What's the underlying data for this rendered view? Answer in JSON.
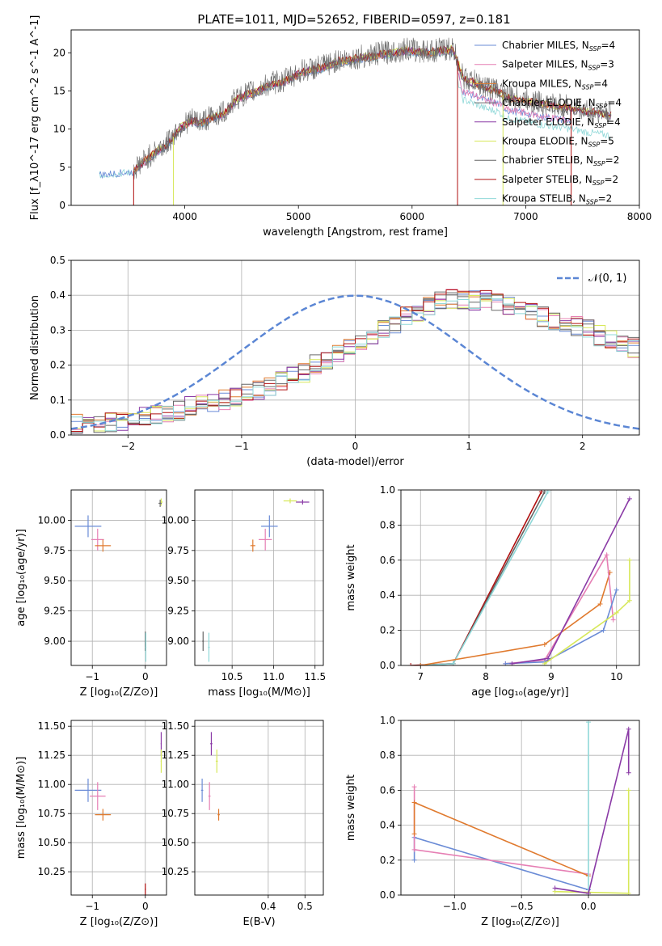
{
  "title": "PLATE=1011, MJD=52652, FIBERID=0597, z=0.181",
  "colors": {
    "chabrier_miles": "#6a8bd6",
    "salpeter_miles": "#e67fb4",
    "kroupa_miles": "#e07a2e",
    "chabrier_elodie": "#6b6b6b",
    "salpeter_elodie": "#8a3aa6",
    "kroupa_elodie": "#d7e85a",
    "chabrier_stelib": "#666666",
    "salpeter_stelib": "#b01010",
    "kroupa_stelib": "#8fd8d8",
    "gauss": "#5b86d4",
    "spectrum": "#808080"
  },
  "chart_data": [
    {
      "type": "line",
      "id": "spectrum",
      "xlabel": "wavelength [Angstrom, rest frame]",
      "ylabel": "Flux [f_λ10^-17 erg cm^-2 s^-1 A^-1]",
      "xlim": [
        3000,
        8000
      ],
      "ylim": [
        0,
        23
      ],
      "xticks": [
        "4000",
        "5000",
        "6000",
        "7000",
        "8000"
      ],
      "yticks": [
        "0",
        "5",
        "10",
        "15",
        "20"
      ],
      "grid": false,
      "legend_position": "top-right",
      "legend": [
        {
          "label": "Chabrier MILES, N",
          "sub": "SSP",
          "tail": "=4",
          "color": "chabrier_miles"
        },
        {
          "label": "Salpeter MILES, N",
          "sub": "SSP",
          "tail": "=3",
          "color": "salpeter_miles"
        },
        {
          "label": "Kroupa MILES, N",
          "sub": "SSP",
          "tail": "=4",
          "color": "kroupa_miles"
        },
        {
          "label": "Chabrier ELODIE, N",
          "sub": "SSP",
          "tail": "=4",
          "color": "chabrier_elodie"
        },
        {
          "label": "Salpeter ELODIE, N",
          "sub": "SSP",
          "tail": "=4",
          "color": "salpeter_elodie"
        },
        {
          "label": "Kroupa ELODIE, N",
          "sub": "SSP",
          "tail": "=5",
          "color": "kroupa_elodie"
        },
        {
          "label": "Chabrier STELIB, N",
          "sub": "SSP",
          "tail": "=2",
          "color": "chabrier_stelib"
        },
        {
          "label": "Salpeter STELIB, N",
          "sub": "SSP",
          "tail": "=2",
          "color": "salpeter_stelib"
        },
        {
          "label": "Kroupa STELIB, N",
          "sub": "SSP",
          "tail": "=2",
          "color": "kroupa_stelib"
        }
      ],
      "continuum": [
        [
          3250,
          4.1
        ],
        [
          3400,
          4.3
        ],
        [
          3550,
          4.5
        ],
        [
          3650,
          5.8
        ],
        [
          3750,
          7.0
        ],
        [
          3850,
          8.0
        ],
        [
          3950,
          10.0
        ],
        [
          4050,
          11.0
        ],
        [
          4150,
          10.8
        ],
        [
          4250,
          11.5
        ],
        [
          4350,
          12.0
        ],
        [
          4450,
          13.8
        ],
        [
          4550,
          14.5
        ],
        [
          4650,
          15.0
        ],
        [
          4750,
          15.8
        ],
        [
          4850,
          16.0
        ],
        [
          4950,
          16.8
        ],
        [
          5050,
          17.5
        ],
        [
          5150,
          17.8
        ],
        [
          5250,
          18.2
        ],
        [
          5350,
          18.8
        ],
        [
          5450,
          19.0
        ],
        [
          5550,
          19.3
        ],
        [
          5650,
          19.5
        ],
        [
          5750,
          19.8
        ],
        [
          5850,
          20.0
        ],
        [
          5950,
          20.3
        ],
        [
          6050,
          20.1
        ],
        [
          6150,
          20.0
        ],
        [
          6250,
          20.2
        ],
        [
          6350,
          20.4
        ],
        [
          6400,
          19.0
        ],
        [
          6450,
          16.5
        ],
        [
          6550,
          16.0
        ],
        [
          6650,
          15.3
        ],
        [
          6750,
          15.0
        ],
        [
          6850,
          14.0
        ],
        [
          6950,
          13.8
        ],
        [
          7050,
          13.5
        ],
        [
          7150,
          13.2
        ],
        [
          7250,
          13.0
        ],
        [
          7350,
          12.8
        ],
        [
          7450,
          12.5
        ],
        [
          7550,
          12.2
        ],
        [
          7650,
          12.0
        ],
        [
          7750,
          11.8
        ]
      ],
      "series_note_cut": [
        [
          3550,
          "salpeter_stelib"
        ],
        [
          3900,
          "kroupa_elodie"
        ],
        [
          6400,
          "salpeter_stelib"
        ],
        [
          6800,
          "kroupa_elodie"
        ],
        [
          7400,
          "salpeter_stelib"
        ]
      ]
    },
    {
      "type": "line",
      "id": "residual-hist",
      "xlabel": "(data-model)/error",
      "ylabel": "Normed distribution",
      "xlim": [
        -2.5,
        2.5
      ],
      "ylim": [
        0,
        0.5
      ],
      "xticks": [
        "−2",
        "−1",
        "0",
        "1",
        "2"
      ],
      "yticks": [
        "0.0",
        "0.1",
        "0.2",
        "0.3",
        "0.4",
        "0.5"
      ],
      "grid": true,
      "legend": [
        {
          "label": "𝒩(0, 1)",
          "color": "gauss",
          "style": "dashed"
        }
      ],
      "bin_width": 0.1,
      "base_profile": [
        0.03,
        0.03,
        0.035,
        0.035,
        0.04,
        0.045,
        0.05,
        0.055,
        0.06,
        0.07,
        0.08,
        0.09,
        0.095,
        0.1,
        0.11,
        0.12,
        0.13,
        0.14,
        0.155,
        0.17,
        0.18,
        0.2,
        0.21,
        0.23,
        0.25,
        0.27,
        0.28,
        0.3,
        0.32,
        0.34,
        0.355,
        0.37,
        0.38,
        0.39,
        0.385,
        0.385,
        0.39,
        0.38,
        0.37,
        0.36,
        0.35,
        0.34,
        0.33,
        0.32,
        0.31,
        0.3,
        0.285,
        0.27,
        0.26,
        0.25,
        0.24,
        0.23,
        0.22,
        0.2,
        0.19,
        0.18,
        0.16,
        0.15,
        0.14,
        0.12,
        0.115,
        0.1,
        0.095,
        0.085,
        0.08,
        0.07,
        0.06,
        0.055,
        0.05,
        0.045
      ]
    },
    {
      "type": "scatter",
      "id": "age-vs-Z",
      "xlabel": "Z [log₁₀(Z/Z⊙)]",
      "ylabel": "age  [log₁₀(age/yr)]",
      "xlim": [
        -1.4,
        0.4
      ],
      "ylim": [
        8.8,
        10.25
      ],
      "xticks": [
        "−1",
        "0"
      ],
      "yticks": [
        "9.00",
        "9.25",
        "9.50",
        "9.75",
        "10.00"
      ],
      "grid": true,
      "points": [
        {
          "x": -1.08,
          "y": 9.95,
          "ex": 0.25,
          "ey": 0.09,
          "color": "chabrier_miles"
        },
        {
          "x": -0.9,
          "y": 9.84,
          "ex": 0.12,
          "ey": 0.09,
          "color": "salpeter_miles"
        },
        {
          "x": -0.8,
          "y": 9.79,
          "ex": 0.15,
          "ey": 0.05,
          "color": "kroupa_miles"
        },
        {
          "x": 0.3,
          "y": 10.15,
          "ex": 0.03,
          "ey": 0.03,
          "color": "kroupa_elodie"
        },
        {
          "x": 0.28,
          "y": 10.14,
          "ex": 0.03,
          "ey": 0.03,
          "color": "chabrier_elodie"
        },
        {
          "x": 0.0,
          "y": 9.0,
          "ex": 0.01,
          "ey": 0.08,
          "color": "chabrier_stelib"
        },
        {
          "x": 0.01,
          "y": 8.95,
          "ex": 0.01,
          "ey": 0.12,
          "color": "kroupa_stelib"
        }
      ]
    },
    {
      "type": "scatter",
      "id": "age-vs-mass",
      "xlabel": "mass [log₁₀(M/M⊙)]",
      "ylabel": "",
      "xlim": [
        10.05,
        11.6
      ],
      "ylim": [
        8.8,
        10.25
      ],
      "xticks": [
        "10.5",
        "11.0",
        "11.5"
      ],
      "yticks": [
        "9.00",
        "9.25",
        "9.50",
        "9.75",
        "10.00"
      ],
      "grid": true,
      "points": [
        {
          "x": 10.95,
          "y": 9.95,
          "ex": 0.1,
          "ey": 0.09,
          "color": "chabrier_miles"
        },
        {
          "x": 10.9,
          "y": 9.84,
          "ex": 0.08,
          "ey": 0.09,
          "color": "salpeter_miles"
        },
        {
          "x": 10.75,
          "y": 9.79,
          "ex": 0.03,
          "ey": 0.05,
          "color": "kroupa_miles"
        },
        {
          "x": 11.35,
          "y": 10.15,
          "ex": 0.08,
          "ey": 0.02,
          "color": "salpeter_elodie"
        },
        {
          "x": 11.2,
          "y": 10.16,
          "ex": 0.08,
          "ey": 0.02,
          "color": "kroupa_elodie"
        },
        {
          "x": 10.15,
          "y": 9.0,
          "ex": 0.01,
          "ey": 0.08,
          "color": "chabrier_stelib"
        },
        {
          "x": 10.22,
          "y": 8.95,
          "ex": 0.01,
          "ey": 0.12,
          "color": "kroupa_stelib"
        }
      ]
    },
    {
      "type": "line",
      "id": "weight-vs-age",
      "xlabel": "age  [log₁₀(age/yr)]",
      "ylabel": "mass weight",
      "xlim": [
        6.7,
        10.35
      ],
      "ylim": [
        0,
        1
      ],
      "xticks": [
        "7",
        "8",
        "9",
        "10"
      ],
      "yticks": [
        "0.0",
        "0.2",
        "0.4",
        "0.6",
        "0.8",
        "1.0"
      ],
      "grid": true,
      "series": [
        {
          "color": "salpeter_stelib",
          "x": [
            6.85,
            7.5,
            8.85
          ],
          "y": [
            0.0,
            0.01,
            0.99
          ]
        },
        {
          "color": "chabrier_stelib",
          "x": [
            7.0,
            7.5,
            8.9
          ],
          "y": [
            0.0,
            0.01,
            0.99
          ]
        },
        {
          "color": "kroupa_stelib",
          "x": [
            7.0,
            7.5,
            8.95
          ],
          "y": [
            0.0,
            0.01,
            0.99
          ]
        },
        {
          "color": "kroupa_miles",
          "x": [
            7.0,
            8.9,
            9.75,
            9.9
          ],
          "y": [
            0.0,
            0.12,
            0.35,
            0.53
          ]
        },
        {
          "color": "salpeter_miles",
          "x": [
            8.3,
            8.9,
            9.85,
            9.95
          ],
          "y": [
            0.01,
            0.03,
            0.63,
            0.26
          ]
        },
        {
          "color": "chabrier_miles",
          "x": [
            8.3,
            8.9,
            9.8,
            10.0
          ],
          "y": [
            0.01,
            0.02,
            0.2,
            0.43
          ]
        },
        {
          "color": "kroupa_elodie",
          "x": [
            8.9,
            10.0,
            10.2,
            10.2
          ],
          "y": [
            0.01,
            0.3,
            0.37,
            0.6
          ]
        },
        {
          "color": "salpeter_elodie",
          "x": [
            8.4,
            8.95,
            10.2
          ],
          "y": [
            0.01,
            0.04,
            0.95
          ]
        }
      ]
    },
    {
      "type": "scatter",
      "id": "mass-vs-Z",
      "xlabel": "Z [log₁₀(Z/Z⊙)]",
      "ylabel": "mass [log₁₀(M/M⊙)]",
      "xlim": [
        -1.4,
        0.4
      ],
      "ylim": [
        10.05,
        11.55
      ],
      "xticks": [
        "−1",
        "0"
      ],
      "yticks": [
        "10.25",
        "10.50",
        "10.75",
        "11.00",
        "11.25",
        "11.50"
      ],
      "grid": true,
      "points": [
        {
          "x": -1.08,
          "y": 10.95,
          "ex": 0.25,
          "ey": 0.1,
          "color": "chabrier_miles"
        },
        {
          "x": -0.9,
          "y": 10.9,
          "ex": 0.15,
          "ey": 0.12,
          "color": "salpeter_miles"
        },
        {
          "x": -0.8,
          "y": 10.74,
          "ex": 0.15,
          "ey": 0.05,
          "color": "kroupa_miles"
        },
        {
          "x": 0.3,
          "y": 11.35,
          "ex": 0.01,
          "ey": 0.1,
          "color": "salpeter_elodie"
        },
        {
          "x": 0.3,
          "y": 11.2,
          "ex": 0.01,
          "ey": 0.1,
          "color": "kroupa_elodie"
        },
        {
          "x": 0.0,
          "y": 10.1,
          "ex": 0.01,
          "ey": 0.05,
          "color": "salpeter_stelib"
        }
      ]
    },
    {
      "type": "scatter",
      "id": "mass-vs-ebv",
      "xlabel": "E(B-V)",
      "ylabel": "",
      "xlim": [
        0.2,
        0.55
      ],
      "ylim": [
        10.05,
        11.55
      ],
      "xticks": [
        "0.4",
        "0.5"
      ],
      "yticks": [
        "10.25",
        "10.50",
        "10.75",
        "11.00",
        "11.25",
        "11.50"
      ],
      "grid": true,
      "points": [
        {
          "x": 0.22,
          "y": 10.95,
          "ex": 0.003,
          "ey": 0.1,
          "color": "chabrier_miles"
        },
        {
          "x": 0.24,
          "y": 10.9,
          "ex": 0.003,
          "ey": 0.12,
          "color": "salpeter_miles"
        },
        {
          "x": 0.265,
          "y": 10.74,
          "ex": 0.003,
          "ey": 0.05,
          "color": "kroupa_miles"
        },
        {
          "x": 0.245,
          "y": 11.35,
          "ex": 0.003,
          "ey": 0.1,
          "color": "salpeter_elodie"
        },
        {
          "x": 0.26,
          "y": 11.2,
          "ex": 0.003,
          "ey": 0.1,
          "color": "kroupa_elodie"
        }
      ]
    },
    {
      "type": "line",
      "id": "weight-vs-Z",
      "xlabel": "Z [log₁₀(Z/Z⊙)]",
      "ylabel": "mass weight",
      "xlim": [
        -1.4,
        0.38
      ],
      "ylim": [
        0,
        1
      ],
      "xticks": [
        "−1.0",
        "−0.5",
        "0.0"
      ],
      "yticks": [
        "0.0",
        "0.2",
        "0.4",
        "0.6",
        "0.8",
        "1.0"
      ],
      "grid": true,
      "series": [
        {
          "color": "chabrier_miles",
          "x": [
            -1.3,
            -1.3,
            0.0
          ],
          "y": [
            0.2,
            0.33,
            0.03
          ]
        },
        {
          "color": "salpeter_miles",
          "x": [
            -1.3,
            -1.3,
            0.0
          ],
          "y": [
            0.62,
            0.26,
            0.12
          ]
        },
        {
          "color": "kroupa_miles",
          "x": [
            -1.3,
            -1.3,
            0.0
          ],
          "y": [
            0.35,
            0.53,
            0.11
          ]
        },
        {
          "color": "kroupa_stelib",
          "x": [
            0.0,
            0.0
          ],
          "y": [
            0.01,
            0.99
          ]
        },
        {
          "color": "kroupa_elodie",
          "x": [
            -0.25,
            0.3,
            0.3
          ],
          "y": [
            0.02,
            0.01,
            0.6
          ]
        },
        {
          "color": "salpeter_elodie",
          "x": [
            -0.25,
            0.0,
            0.3,
            0.3
          ],
          "y": [
            0.04,
            0.01,
            0.95,
            0.7
          ]
        }
      ]
    }
  ]
}
